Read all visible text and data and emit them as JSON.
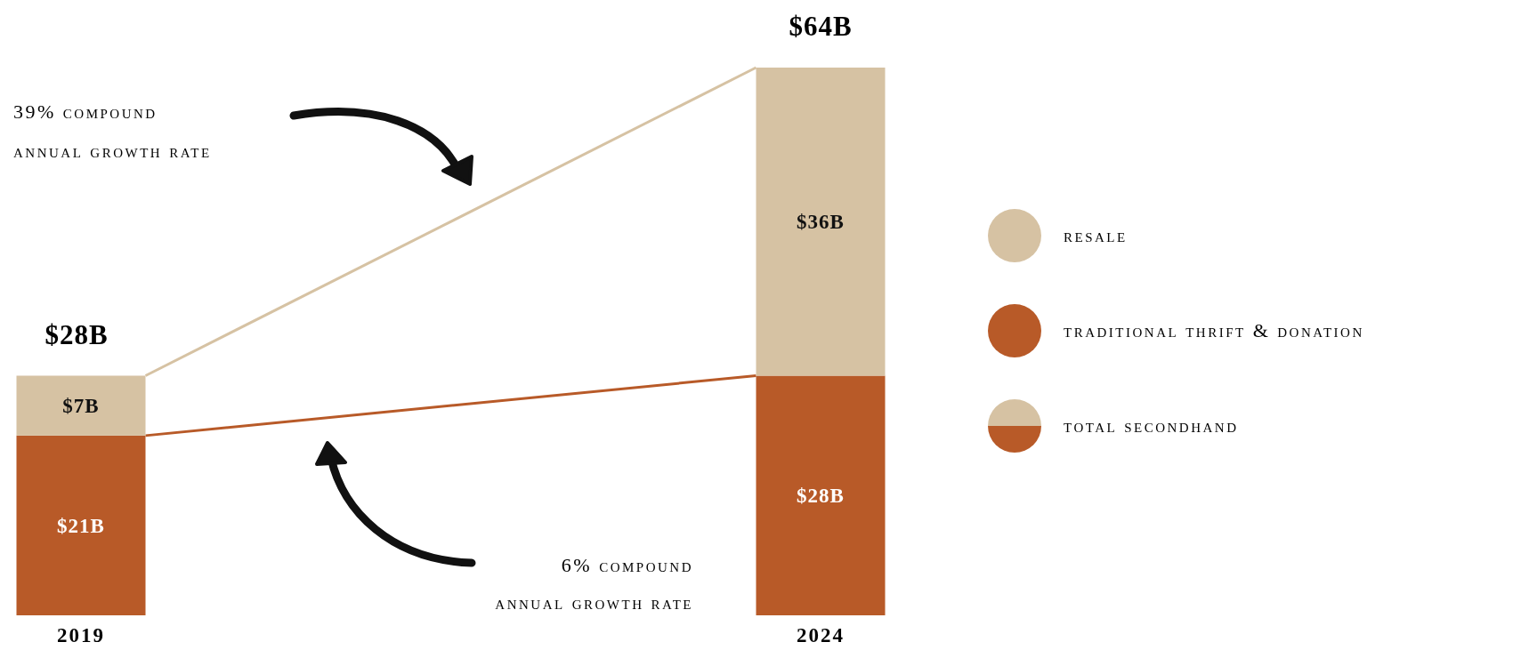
{
  "chart_data": {
    "type": "bar",
    "stacked": true,
    "categories": [
      "2019",
      "2024"
    ],
    "series": [
      {
        "name": "traditional thrift & donation",
        "color": "#b85a28",
        "values": [
          21,
          28
        ],
        "value_labels": [
          "$21B",
          "$28B"
        ]
      },
      {
        "name": "resale",
        "color": "#d6c2a3",
        "values": [
          7,
          36
        ],
        "value_labels": [
          "$7B",
          "$36B"
        ]
      }
    ],
    "totals": [
      "$28B",
      "$64B"
    ],
    "legend": "right",
    "annotations": [
      "39% compound annual growth rate",
      "6% compound annual growth rate",
      "total secondhand"
    ]
  }
}
